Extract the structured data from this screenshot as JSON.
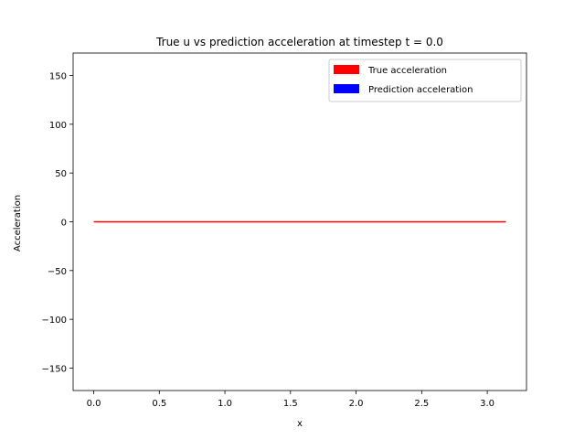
{
  "chart_data": {
    "type": "line",
    "title": "True u vs prediction acceleration at timestep t = 0.0",
    "xlabel": "x",
    "ylabel": "Acceleration",
    "xlim": [
      -0.157,
      3.299
    ],
    "ylim": [
      -173,
      173
    ],
    "xticks": [
      0.0,
      0.5,
      1.0,
      1.5,
      2.0,
      2.5,
      3.0
    ],
    "xtick_labels": [
      "0.0",
      "0.5",
      "1.0",
      "1.5",
      "2.0",
      "2.5",
      "3.0"
    ],
    "yticks": [
      -150,
      -100,
      -50,
      0,
      50,
      100,
      150
    ],
    "ytick_labels": [
      "−150",
      "−100",
      "−50",
      "0",
      "50",
      "100",
      "150"
    ],
    "grid": false,
    "legend_position": "top-right",
    "series": [
      {
        "name": "True acceleration",
        "color": "#ff0000",
        "x": [
          0.0,
          0.5,
          1.0,
          1.5,
          2.0,
          2.5,
          3.0,
          3.1416
        ],
        "y": [
          0,
          0,
          0,
          0,
          0,
          0,
          0,
          0
        ]
      },
      {
        "name": "Prediction acceleration",
        "color": "#0000ff",
        "x": [],
        "y": []
      }
    ]
  }
}
